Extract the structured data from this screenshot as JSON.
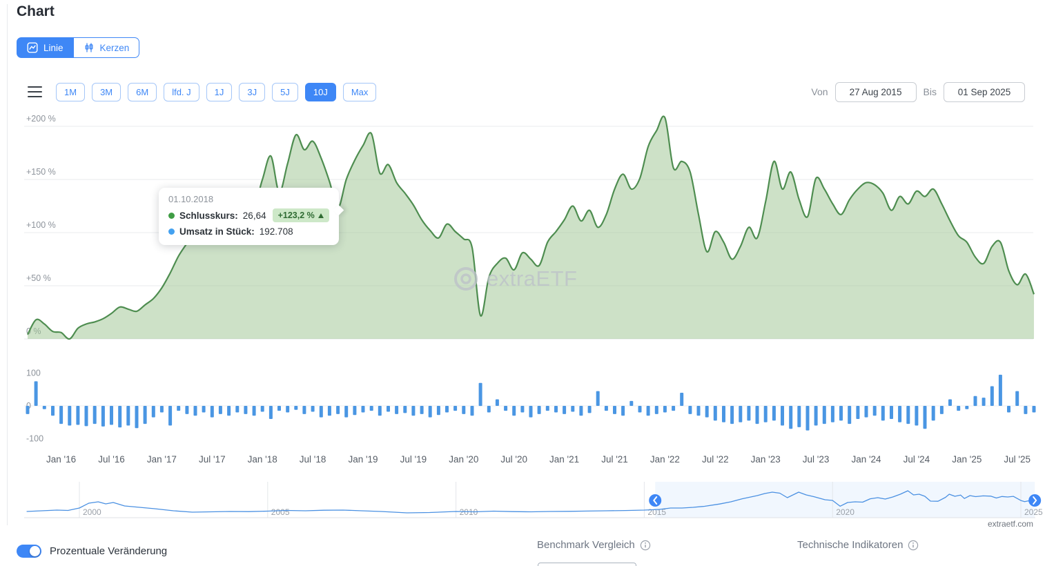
{
  "page": {
    "title": "Chart",
    "credit": "extraetf.com"
  },
  "chart_type_toggle": {
    "options": [
      {
        "label": "Linie",
        "active": true
      },
      {
        "label": "Kerzen",
        "active": false
      }
    ]
  },
  "range_buttons": [
    "1M",
    "3M",
    "6M",
    "lfd. J",
    "1J",
    "3J",
    "5J",
    "10J",
    "Max"
  ],
  "range_active": "10J",
  "date_range": {
    "von_label": "Von",
    "von_value": "27 Aug 2015",
    "bis_label": "Bis",
    "bis_value": "01 Sep 2025"
  },
  "tooltip": {
    "date": "01.10.2018",
    "rows": [
      {
        "label": "Schlusskurs:",
        "value": "26,64",
        "badge": "+123,2 %",
        "dot_color": "#3f9d44"
      },
      {
        "label": "Umsatz in Stück:",
        "value": "192.708",
        "dot_color": "#44a1f0"
      }
    ]
  },
  "watermark": "extraETF",
  "footer": {
    "toggle_label": "Prozentuale Veränderung",
    "toggle_on": true,
    "benchmark_label": "Benchmark Vergleich",
    "indicators_label": "Technische Indikatoren"
  },
  "colors": {
    "accent_blue": "#3e87f6",
    "line_green": "#4e8d50",
    "fill_green": "#9cc490",
    "volume_blue": "#4a96e3",
    "nav_blue": "#4a90e2"
  },
  "chart_data": [
    {
      "type": "area",
      "name": "performance-percent",
      "x_start": "2015-09",
      "x_interval": "month",
      "values": [
        4,
        18,
        14,
        7,
        6,
        0,
        10,
        14,
        16,
        19,
        24,
        30,
        28,
        26,
        32,
        38,
        48,
        62,
        78,
        90,
        102,
        96,
        112,
        106,
        118,
        124,
        138,
        125,
        150,
        172,
        138,
        165,
        192,
        178,
        186,
        170,
        148,
        123,
        150,
        168,
        182,
        193,
        156,
        164,
        147,
        137,
        126,
        112,
        102,
        95,
        108,
        101,
        94,
        86,
        22,
        58,
        71,
        76,
        65,
        81,
        75,
        69,
        91,
        101,
        112,
        125,
        111,
        121,
        105,
        117,
        141,
        155,
        141,
        151,
        181,
        196,
        208,
        161,
        167,
        157,
        117,
        82,
        101,
        91,
        75,
        87,
        105,
        95,
        129,
        167,
        141,
        157,
        131,
        115,
        151,
        141,
        127,
        117,
        131,
        141,
        147,
        145,
        137,
        121,
        134,
        127,
        139,
        134,
        141,
        127,
        111,
        97,
        91,
        77,
        71,
        87,
        91,
        64,
        51,
        61,
        42
      ],
      "ylim": [
        -10,
        215
      ],
      "yticks": [
        0,
        50,
        100,
        150,
        200
      ],
      "ytick_labels": [
        "0 %",
        "+50 %",
        "+100 %",
        "+150 %",
        "+200 %"
      ],
      "xtick_idx": [
        4,
        10,
        16,
        22,
        28,
        34,
        40,
        46,
        52,
        58,
        64,
        70,
        76,
        82,
        88,
        94,
        100,
        106,
        112,
        118
      ],
      "xtick_labels": [
        "Jan '16",
        "Jul '16",
        "Jan '17",
        "Jul '17",
        "Jan '18",
        "Jul '18",
        "Jan '19",
        "Jul '19",
        "Jan '20",
        "Jul '20",
        "Jan '21",
        "Jul '21",
        "Jan '22",
        "Jul '22",
        "Jan '23",
        "Jul '23",
        "Jan '24",
        "Jul '24",
        "Jan '25",
        "Jul '25"
      ],
      "line_color": "#4e8d50",
      "fill_color": "#9cc490",
      "grid": "horizontal",
      "legend": "none"
    },
    {
      "type": "bar",
      "name": "volume",
      "values": [
        -25,
        75,
        -10,
        -30,
        -55,
        -60,
        -58,
        -62,
        -55,
        -63,
        -58,
        -66,
        -60,
        -68,
        -55,
        -35,
        -20,
        -60,
        -15,
        -25,
        -30,
        -20,
        -35,
        -25,
        -30,
        -20,
        -25,
        -30,
        -18,
        -40,
        -15,
        -20,
        -12,
        -25,
        -18,
        -35,
        -30,
        -25,
        -35,
        -28,
        -20,
        -15,
        -30,
        -18,
        -25,
        -22,
        -30,
        -25,
        -35,
        -28,
        -20,
        -15,
        -25,
        -30,
        70,
        -20,
        20,
        -15,
        -30,
        -20,
        -35,
        -25,
        -15,
        -20,
        -25,
        -18,
        -30,
        -22,
        45,
        -15,
        -25,
        -30,
        15,
        -20,
        -30,
        -25,
        -20,
        -15,
        40,
        -25,
        -30,
        -35,
        -45,
        -50,
        -55,
        -50,
        -45,
        -55,
        -50,
        -45,
        -60,
        -70,
        -65,
        -75,
        -60,
        -55,
        -50,
        -45,
        -55,
        -40,
        -35,
        -30,
        -45,
        -40,
        -50,
        -55,
        -60,
        -70,
        -45,
        -25,
        20,
        -15,
        -10,
        30,
        25,
        60,
        95,
        -20,
        45,
        -25,
        -20
      ],
      "ylim": [
        -130,
        120
      ],
      "yticks": [
        100,
        0,
        -100
      ],
      "color": "#4a96e3"
    },
    {
      "type": "line",
      "name": "navigator",
      "points": [
        [
          1998.6,
          7
        ],
        [
          1999,
          8
        ],
        [
          1999.4,
          9
        ],
        [
          1999.7,
          8.5
        ],
        [
          2000,
          12
        ],
        [
          2000.25,
          19
        ],
        [
          2000.5,
          21
        ],
        [
          2000.7,
          18
        ],
        [
          2000.9,
          20
        ],
        [
          2001.2,
          15
        ],
        [
          2001.6,
          13
        ],
        [
          2002,
          11
        ],
        [
          2002.5,
          8
        ],
        [
          2003,
          6
        ],
        [
          2003.5,
          6.5
        ],
        [
          2004,
          7
        ],
        [
          2004.5,
          6.8
        ],
        [
          2005,
          7.5
        ],
        [
          2005.5,
          8.5
        ],
        [
          2006,
          8
        ],
        [
          2006.5,
          8.8
        ],
        [
          2007,
          9
        ],
        [
          2007.5,
          8
        ],
        [
          2008,
          7
        ],
        [
          2008.7,
          5
        ],
        [
          2009.3,
          5.5
        ],
        [
          2010,
          7
        ],
        [
          2010.5,
          6.5
        ],
        [
          2011,
          7.5
        ],
        [
          2011.5,
          6.8
        ],
        [
          2012,
          6.5
        ],
        [
          2012.5,
          7
        ],
        [
          2013,
          7.2
        ],
        [
          2013.5,
          7.6
        ],
        [
          2014,
          8
        ],
        [
          2014.5,
          8.4
        ],
        [
          2015,
          9
        ],
        [
          2015.4,
          10
        ],
        [
          2015.7,
          12
        ],
        [
          2016,
          12
        ],
        [
          2016.3,
          13
        ],
        [
          2016.6,
          14.5
        ],
        [
          2017,
          17.8
        ],
        [
          2017.3,
          21
        ],
        [
          2017.6,
          25.4
        ],
        [
          2018,
          30
        ],
        [
          2018.2,
          33
        ],
        [
          2018.4,
          35
        ],
        [
          2018.6,
          33.5
        ],
        [
          2018.8,
          27
        ],
        [
          2019.1,
          35
        ],
        [
          2019.3,
          31
        ],
        [
          2019.5,
          28.5
        ],
        [
          2019.8,
          24
        ],
        [
          2020,
          23
        ],
        [
          2020.2,
          14.6
        ],
        [
          2020.4,
          20
        ],
        [
          2020.6,
          21
        ],
        [
          2020.8,
          20.5
        ],
        [
          2021,
          25.4
        ],
        [
          2021.2,
          27
        ],
        [
          2021.4,
          25
        ],
        [
          2021.6,
          28
        ],
        [
          2021.8,
          32
        ],
        [
          2022,
          37
        ],
        [
          2022.15,
          31
        ],
        [
          2022.3,
          32
        ],
        [
          2022.45,
          29
        ],
        [
          2022.6,
          22
        ],
        [
          2022.8,
          21.8
        ],
        [
          2023,
          27.5
        ],
        [
          2023.1,
          32
        ],
        [
          2023.25,
          29
        ],
        [
          2023.4,
          30.8
        ],
        [
          2023.5,
          25.8
        ],
        [
          2023.65,
          30
        ],
        [
          2023.8,
          28.5
        ],
        [
          2024,
          29.6
        ],
        [
          2024.2,
          29.2
        ],
        [
          2024.35,
          26.5
        ],
        [
          2024.5,
          28.7
        ],
        [
          2024.65,
          28
        ],
        [
          2024.8,
          28.9
        ],
        [
          2025,
          22.9
        ],
        [
          2025.1,
          21.2
        ],
        [
          2025.2,
          22.4
        ],
        [
          2025.3,
          20
        ],
        [
          2025.37,
          17.5
        ]
      ],
      "ylim": [
        0,
        40
      ],
      "year_ticks": [
        2000,
        2005,
        2010,
        2015,
        2020,
        2025
      ],
      "selection": [
        2015.29,
        2025.37
      ],
      "line_color": "#4a90e2",
      "accent": "#3e87f6"
    }
  ]
}
